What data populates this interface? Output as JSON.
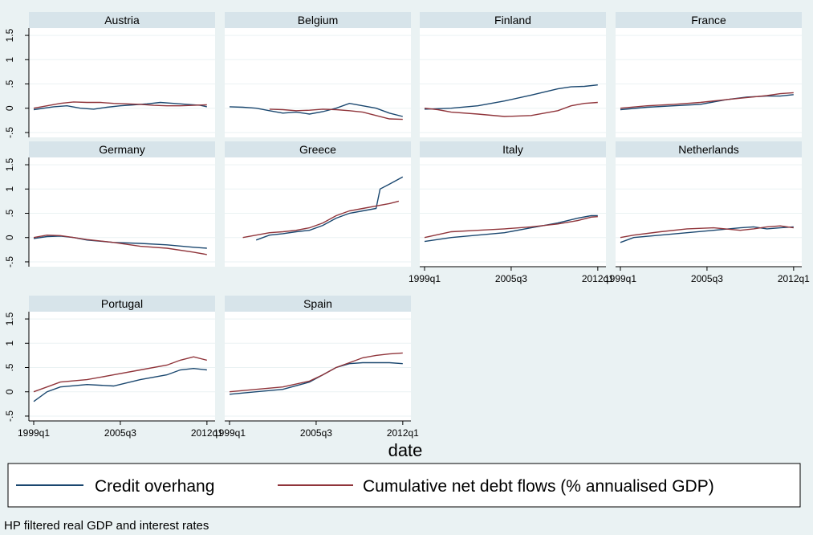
{
  "figure": {
    "xlabel": "date",
    "note": "HP filtered real GDP and interest rates",
    "legend": [
      "Credit overhang",
      "Cumulative net debt flows (% annualised GDP)"
    ],
    "colors": {
      "background": "#eaf2f3",
      "panel": "#ffffff",
      "strip": "#d7e4ea",
      "grid": "#eaf2f3",
      "credit": "#1a476f",
      "cumulative": "#90353b"
    }
  },
  "chart_data": {
    "type": "line",
    "ylim": [
      -0.6,
      1.65
    ],
    "yticks": [
      -0.5,
      0,
      0.5,
      1,
      1.5
    ],
    "ytick_labels": [
      "-.5",
      "0",
      ".5",
      "1",
      "1.5"
    ],
    "xlim": [
      1999.0,
      2012.25
    ],
    "xticks": [
      1999.0,
      2005.5,
      2012.0
    ],
    "xtick_labels": [
      "1999q1",
      "2005q3",
      "2012q1"
    ],
    "grid": true,
    "legend_position": "bottom",
    "series_names": [
      "Credit overhang",
      "Cumulative net debt flows (% annualised GDP)"
    ],
    "panels": [
      {
        "name": "Austria",
        "credit": [
          [
            1999.0,
            -0.03
          ],
          [
            2000.5,
            0.03
          ],
          [
            2001.5,
            0.05
          ],
          [
            2002.5,
            0.0
          ],
          [
            2003.5,
            -0.02
          ],
          [
            2004.5,
            0.02
          ],
          [
            2005.5,
            0.05
          ],
          [
            2006.5,
            0.07
          ],
          [
            2007.5,
            0.09
          ],
          [
            2008.5,
            0.12
          ],
          [
            2009.5,
            0.1
          ],
          [
            2010.5,
            0.08
          ],
          [
            2011.5,
            0.06
          ],
          [
            2012.0,
            0.03
          ]
        ],
        "cumulative": [
          [
            1999.0,
            0.0
          ],
          [
            2000.0,
            0.05
          ],
          [
            2001.0,
            0.1
          ],
          [
            2002.0,
            0.13
          ],
          [
            2003.0,
            0.12
          ],
          [
            2004.0,
            0.12
          ],
          [
            2005.0,
            0.1
          ],
          [
            2006.0,
            0.09
          ],
          [
            2007.0,
            0.08
          ],
          [
            2008.0,
            0.06
          ],
          [
            2009.0,
            0.05
          ],
          [
            2010.0,
            0.05
          ],
          [
            2011.0,
            0.06
          ],
          [
            2012.0,
            0.07
          ]
        ]
      },
      {
        "name": "Belgium",
        "credit": [
          [
            1999.0,
            0.03
          ],
          [
            2000.0,
            0.02
          ],
          [
            2001.0,
            0.0
          ],
          [
            2002.0,
            -0.05
          ],
          [
            2003.0,
            -0.1
          ],
          [
            2004.0,
            -0.08
          ],
          [
            2005.0,
            -0.12
          ],
          [
            2006.0,
            -0.07
          ],
          [
            2007.0,
            0.0
          ],
          [
            2008.0,
            0.1
          ],
          [
            2009.0,
            0.05
          ],
          [
            2010.0,
            0.0
          ],
          [
            2011.0,
            -0.1
          ],
          [
            2012.0,
            -0.17
          ]
        ],
        "cumulative": [
          [
            2002.0,
            -0.02
          ],
          [
            2003.0,
            -0.03
          ],
          [
            2004.0,
            -0.05
          ],
          [
            2005.0,
            -0.04
          ],
          [
            2006.0,
            -0.02
          ],
          [
            2007.0,
            -0.03
          ],
          [
            2008.0,
            -0.05
          ],
          [
            2009.0,
            -0.08
          ],
          [
            2010.0,
            -0.15
          ],
          [
            2011.0,
            -0.22
          ],
          [
            2012.0,
            -0.23
          ]
        ]
      },
      {
        "name": "Finland",
        "credit": [
          [
            1999.0,
            -0.02
          ],
          [
            2001.0,
            0.0
          ],
          [
            2003.0,
            0.05
          ],
          [
            2005.0,
            0.15
          ],
          [
            2007.0,
            0.27
          ],
          [
            2009.0,
            0.4
          ],
          [
            2010.0,
            0.44
          ],
          [
            2011.0,
            0.45
          ],
          [
            2012.0,
            0.48
          ]
        ],
        "cumulative": [
          [
            1999.0,
            0.0
          ],
          [
            2000.0,
            -0.03
          ],
          [
            2001.0,
            -0.08
          ],
          [
            2003.0,
            -0.12
          ],
          [
            2005.0,
            -0.17
          ],
          [
            2007.0,
            -0.15
          ],
          [
            2009.0,
            -0.05
          ],
          [
            2010.0,
            0.05
          ],
          [
            2011.0,
            0.1
          ],
          [
            2012.0,
            0.12
          ]
        ]
      },
      {
        "name": "France",
        "credit": [
          [
            1999.0,
            -0.03
          ],
          [
            2001.0,
            0.02
          ],
          [
            2003.0,
            0.05
          ],
          [
            2005.0,
            0.08
          ],
          [
            2007.0,
            0.18
          ],
          [
            2008.5,
            0.23
          ],
          [
            2010.0,
            0.25
          ],
          [
            2011.0,
            0.25
          ],
          [
            2012.0,
            0.28
          ]
        ],
        "cumulative": [
          [
            1999.0,
            0.0
          ],
          [
            2001.0,
            0.05
          ],
          [
            2003.0,
            0.08
          ],
          [
            2005.0,
            0.12
          ],
          [
            2007.0,
            0.18
          ],
          [
            2008.5,
            0.22
          ],
          [
            2010.0,
            0.26
          ],
          [
            2011.0,
            0.3
          ],
          [
            2012.0,
            0.32
          ]
        ]
      },
      {
        "name": "Germany",
        "credit": [
          [
            1999.0,
            -0.02
          ],
          [
            2000.0,
            0.02
          ],
          [
            2001.0,
            0.03
          ],
          [
            2002.0,
            0.0
          ],
          [
            2003.0,
            -0.05
          ],
          [
            2005.0,
            -0.1
          ],
          [
            2007.0,
            -0.12
          ],
          [
            2009.0,
            -0.15
          ],
          [
            2011.0,
            -0.2
          ],
          [
            2012.0,
            -0.22
          ]
        ],
        "cumulative": [
          [
            1999.0,
            0.0
          ],
          [
            2000.0,
            0.05
          ],
          [
            2001.0,
            0.04
          ],
          [
            2002.0,
            0.0
          ],
          [
            2003.0,
            -0.04
          ],
          [
            2005.0,
            -0.1
          ],
          [
            2007.0,
            -0.18
          ],
          [
            2009.0,
            -0.22
          ],
          [
            2011.0,
            -0.3
          ],
          [
            2012.0,
            -0.35
          ]
        ]
      },
      {
        "name": "Greece",
        "credit": [
          [
            2001.0,
            -0.05
          ],
          [
            2002.0,
            0.05
          ],
          [
            2003.0,
            0.08
          ],
          [
            2004.0,
            0.12
          ],
          [
            2005.0,
            0.15
          ],
          [
            2006.0,
            0.25
          ],
          [
            2007.0,
            0.4
          ],
          [
            2008.0,
            0.5
          ],
          [
            2009.0,
            0.55
          ],
          [
            2010.0,
            0.6
          ],
          [
            2010.3,
            1.0
          ],
          [
            2011.0,
            1.1
          ],
          [
            2012.0,
            1.25
          ]
        ],
        "cumulative": [
          [
            2000.0,
            0.0
          ],
          [
            2001.0,
            0.05
          ],
          [
            2002.0,
            0.1
          ],
          [
            2003.0,
            0.12
          ],
          [
            2004.0,
            0.15
          ],
          [
            2005.0,
            0.2
          ],
          [
            2006.0,
            0.3
          ],
          [
            2007.0,
            0.45
          ],
          [
            2008.0,
            0.55
          ],
          [
            2009.0,
            0.6
          ],
          [
            2010.0,
            0.65
          ],
          [
            2011.0,
            0.7
          ],
          [
            2011.7,
            0.75
          ]
        ]
      },
      {
        "name": "Italy",
        "credit": [
          [
            1999.0,
            -0.08
          ],
          [
            2001.0,
            0.0
          ],
          [
            2003.0,
            0.05
          ],
          [
            2005.0,
            0.1
          ],
          [
            2007.0,
            0.2
          ],
          [
            2009.0,
            0.3
          ],
          [
            2010.5,
            0.4
          ],
          [
            2011.5,
            0.45
          ],
          [
            2012.0,
            0.45
          ]
        ],
        "cumulative": [
          [
            1999.0,
            0.0
          ],
          [
            2001.0,
            0.12
          ],
          [
            2003.0,
            0.15
          ],
          [
            2005.0,
            0.18
          ],
          [
            2007.0,
            0.22
          ],
          [
            2009.0,
            0.28
          ],
          [
            2010.5,
            0.35
          ],
          [
            2011.5,
            0.42
          ],
          [
            2012.0,
            0.43
          ]
        ]
      },
      {
        "name": "Netherlands",
        "credit": [
          [
            1999.0,
            -0.1
          ],
          [
            2000.0,
            0.0
          ],
          [
            2002.0,
            0.05
          ],
          [
            2004.0,
            0.1
          ],
          [
            2006.0,
            0.15
          ],
          [
            2008.0,
            0.2
          ],
          [
            2009.0,
            0.22
          ],
          [
            2010.0,
            0.18
          ],
          [
            2011.0,
            0.2
          ],
          [
            2012.0,
            0.22
          ]
        ],
        "cumulative": [
          [
            1999.0,
            0.0
          ],
          [
            2000.0,
            0.05
          ],
          [
            2002.0,
            0.12
          ],
          [
            2004.0,
            0.18
          ],
          [
            2006.0,
            0.2
          ],
          [
            2008.0,
            0.15
          ],
          [
            2009.0,
            0.18
          ],
          [
            2010.0,
            0.22
          ],
          [
            2011.0,
            0.24
          ],
          [
            2012.0,
            0.2
          ]
        ]
      },
      {
        "name": "Portugal",
        "credit": [
          [
            1999.0,
            -0.2
          ],
          [
            2000.0,
            0.0
          ],
          [
            2001.0,
            0.1
          ],
          [
            2003.0,
            0.15
          ],
          [
            2005.0,
            0.12
          ],
          [
            2007.0,
            0.25
          ],
          [
            2009.0,
            0.35
          ],
          [
            2010.0,
            0.45
          ],
          [
            2011.0,
            0.48
          ],
          [
            2012.0,
            0.45
          ]
        ],
        "cumulative": [
          [
            1999.0,
            0.0
          ],
          [
            2000.0,
            0.1
          ],
          [
            2001.0,
            0.2
          ],
          [
            2003.0,
            0.25
          ],
          [
            2005.0,
            0.35
          ],
          [
            2007.0,
            0.45
          ],
          [
            2009.0,
            0.55
          ],
          [
            2010.0,
            0.65
          ],
          [
            2011.0,
            0.72
          ],
          [
            2012.0,
            0.65
          ]
        ]
      },
      {
        "name": "Spain",
        "credit": [
          [
            1999.0,
            -0.05
          ],
          [
            2001.0,
            0.0
          ],
          [
            2003.0,
            0.05
          ],
          [
            2005.0,
            0.2
          ],
          [
            2006.0,
            0.35
          ],
          [
            2007.0,
            0.5
          ],
          [
            2008.0,
            0.58
          ],
          [
            2009.0,
            0.6
          ],
          [
            2010.0,
            0.6
          ],
          [
            2011.0,
            0.6
          ],
          [
            2012.0,
            0.58
          ]
        ],
        "cumulative": [
          [
            1999.0,
            0.0
          ],
          [
            2001.0,
            0.05
          ],
          [
            2003.0,
            0.1
          ],
          [
            2005.0,
            0.22
          ],
          [
            2006.0,
            0.35
          ],
          [
            2007.0,
            0.5
          ],
          [
            2008.0,
            0.6
          ],
          [
            2009.0,
            0.7
          ],
          [
            2010.0,
            0.75
          ],
          [
            2011.0,
            0.78
          ],
          [
            2012.0,
            0.8
          ]
        ]
      }
    ]
  }
}
